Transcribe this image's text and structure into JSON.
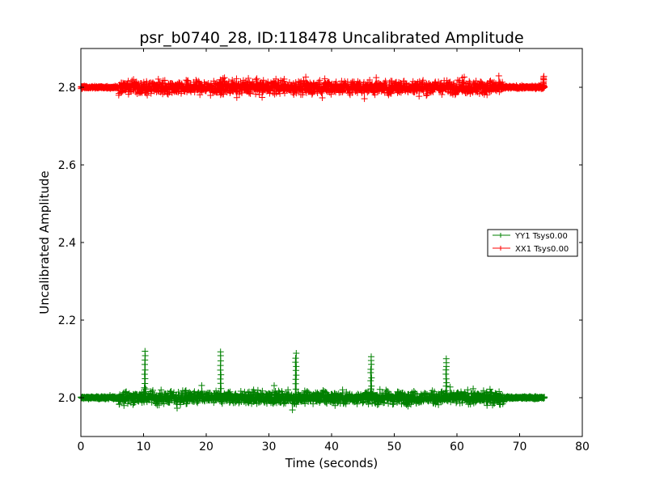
{
  "chart_data": {
    "type": "scatter",
    "title": "psr_b0740_28, ID:118478 Uncalibrated Amplitude",
    "xlabel": "Time (seconds)",
    "ylabel": "Uncalibrated Amplitude",
    "xlim": [
      0,
      80
    ],
    "ylim": [
      1.9,
      2.9
    ],
    "x_ticks": [
      0,
      10,
      20,
      30,
      40,
      50,
      60,
      70,
      80
    ],
    "x_tick_labels": [
      "0",
      "10",
      "20",
      "30",
      "40",
      "50",
      "60",
      "70",
      "80"
    ],
    "y_ticks": [
      2.0,
      2.2,
      2.4,
      2.6,
      2.8
    ],
    "y_tick_labels": [
      "2.0",
      "2.2",
      "2.4",
      "2.6",
      "2.8"
    ],
    "grid": false,
    "legend_position": "center-right",
    "marker": "+",
    "series": [
      {
        "name": "YY1 Tsys0.00",
        "color": "#008000",
        "baseline": 2.0,
        "x_range": [
          0,
          74
        ],
        "noise_low_amp": 0.006,
        "noise_high_amp": 0.028,
        "noisy_interval": [
          6,
          67.5
        ],
        "spikes": [
          {
            "x": 10.2,
            "y": 2.12
          },
          {
            "x": 22.3,
            "y": 2.12
          },
          {
            "x": 34.3,
            "y": 2.115
          },
          {
            "x": 46.3,
            "y": 2.105
          },
          {
            "x": 58.3,
            "y": 2.1
          }
        ]
      },
      {
        "name": "XX1 Tsys0.00",
        "color": "#ff0000",
        "baseline": 2.8,
        "x_range": [
          0,
          74
        ],
        "noise_low_amp": 0.006,
        "noise_high_amp": 0.03,
        "noisy_interval": [
          6,
          67.5
        ],
        "spikes": [
          {
            "x": 73.8,
            "y": 2.83
          }
        ]
      }
    ]
  }
}
